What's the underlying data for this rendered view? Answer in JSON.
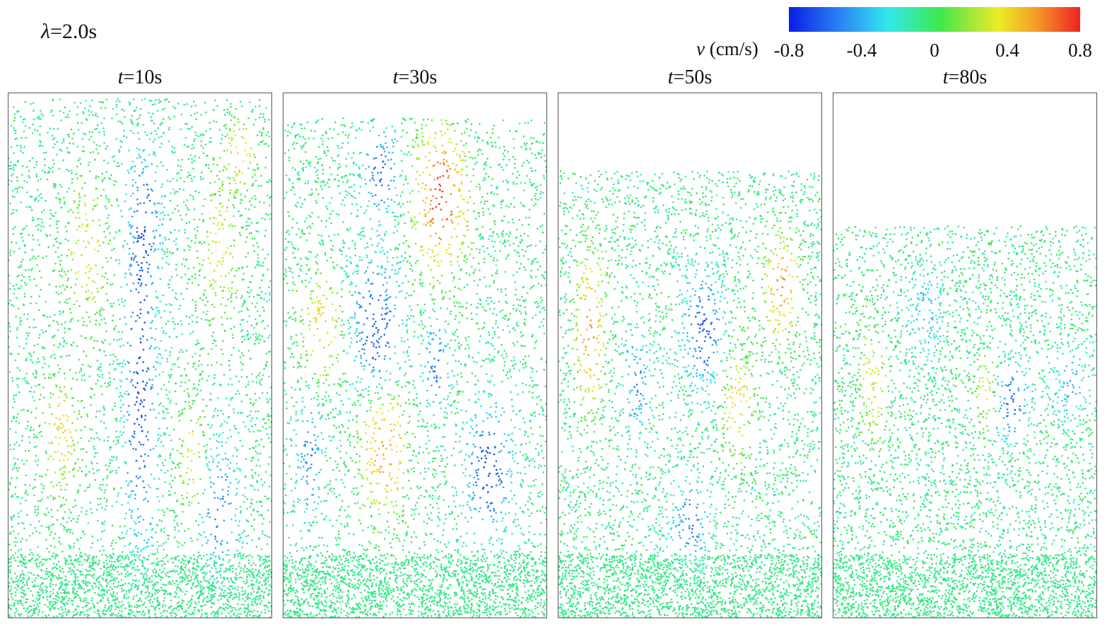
{
  "header": {
    "lambda_symbol": "λ",
    "lambda_value": "=2.0s"
  },
  "colorbar": {
    "variable": "v",
    "unit": " (cm/s)",
    "ticks": [
      "-0.8",
      "-0.4",
      "0",
      "0.4",
      "0.8"
    ],
    "colors": [
      "#0a1ee6",
      "#2a86f2",
      "#33e8ee",
      "#3ee84a",
      "#ecec26",
      "#f39c26",
      "#ee2222"
    ]
  },
  "panels": [
    {
      "t_symbol": "t",
      "t_value": "=10s"
    },
    {
      "t_symbol": "t",
      "t_value": "=30s"
    },
    {
      "t_symbol": "t",
      "t_value": "=50s"
    },
    {
      "t_symbol": "t",
      "t_value": "=80s"
    }
  ]
}
